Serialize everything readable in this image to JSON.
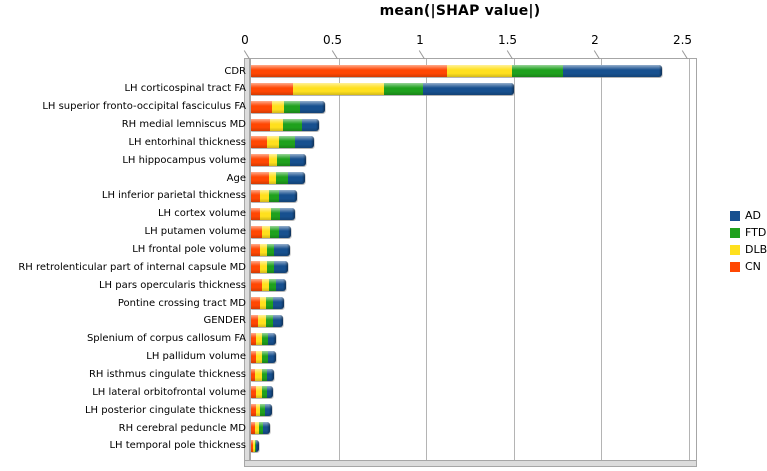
{
  "title": "mean(|SHAP value|)",
  "legend": {
    "position": "right-middle",
    "items": [
      {
        "label": "AD",
        "color": "#17508f"
      },
      {
        "label": "FTD",
        "color": "#1fa11d"
      },
      {
        "label": "DLB",
        "color": "#ffe01e"
      },
      {
        "label": "CN",
        "color": "#ff4703"
      }
    ]
  },
  "chart_data": {
    "type": "bar",
    "orientation": "horizontal",
    "stacked": true,
    "title": "mean(|SHAP value|)",
    "xlabel": "mean(|SHAP value|)",
    "ylabel": "",
    "xlim": [
      0,
      2.5
    ],
    "xticks": [
      0,
      0.5,
      1,
      1.5,
      2,
      2.5
    ],
    "xtick_labels": [
      "0",
      "0.5",
      "1",
      "1.5",
      "2",
      "2.5"
    ],
    "grid": true,
    "legend_position": "right",
    "stack_order": [
      "CN",
      "DLB",
      "FTD",
      "AD"
    ],
    "categories": [
      "CDR",
      "LH corticospinal tract FA",
      "LH superior fronto-occipital fasciculus FA",
      "RH medial lemniscus MD",
      "LH entorhinal thickness",
      "LH hippocampus volume",
      "Age",
      "LH inferior parietal thickness",
      "LH cortex volume",
      "LH putamen volume",
      "LH frontal pole volume",
      "RH retrolenticular part of internal capsule MD",
      "LH pars opercularis thickness",
      "Pontine crossing tract MD",
      "GENDER",
      "Splenium of corpus callosum FA",
      "LH pallidum volume",
      "RH isthmus cingulate thickness",
      "LH lateral orbitofrontal volume",
      "LH posterior cingulate thickness",
      "RH cerebral peduncle MD",
      "LH temporal pole thickness"
    ],
    "series": [
      {
        "name": "CN",
        "color": "#ff4703",
        "values": [
          1.12,
          0.24,
          0.12,
          0.11,
          0.09,
          0.1,
          0.1,
          0.05,
          0.05,
          0.06,
          0.05,
          0.05,
          0.06,
          0.05,
          0.04,
          0.03,
          0.03,
          0.025,
          0.03,
          0.03,
          0.02,
          0.01
        ]
      },
      {
        "name": "DLB",
        "color": "#ffe01e",
        "values": [
          0.37,
          0.52,
          0.07,
          0.07,
          0.07,
          0.05,
          0.04,
          0.055,
          0.065,
          0.05,
          0.04,
          0.04,
          0.04,
          0.035,
          0.045,
          0.035,
          0.035,
          0.035,
          0.03,
          0.02,
          0.025,
          0.01
        ]
      },
      {
        "name": "FTD",
        "color": "#1fa11d",
        "values": [
          0.29,
          0.22,
          0.09,
          0.11,
          0.09,
          0.075,
          0.07,
          0.055,
          0.05,
          0.05,
          0.04,
          0.04,
          0.04,
          0.04,
          0.04,
          0.03,
          0.03,
          0.03,
          0.03,
          0.03,
          0.025,
          0.008
        ]
      },
      {
        "name": "AD",
        "color": "#17508f",
        "values": [
          0.57,
          0.52,
          0.14,
          0.1,
          0.11,
          0.09,
          0.1,
          0.1,
          0.085,
          0.07,
          0.09,
          0.08,
          0.06,
          0.065,
          0.06,
          0.05,
          0.045,
          0.04,
          0.035,
          0.04,
          0.04,
          0.017
        ]
      }
    ]
  }
}
